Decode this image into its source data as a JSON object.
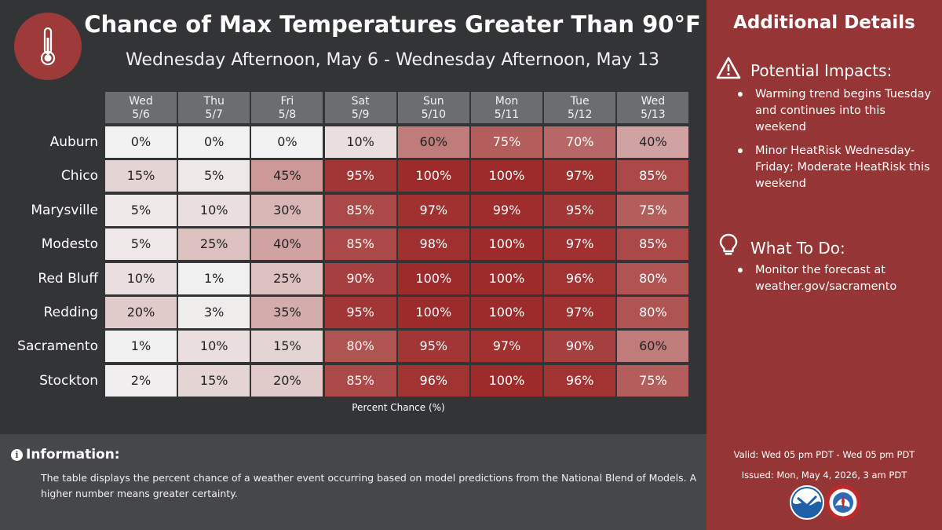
{
  "header": {
    "title": "Chance of Max Temperatures Greater Than 90°F",
    "subtitle": "Wednesday Afternoon, May 6 - Wednesday Afternoon, May 13"
  },
  "chart_data": {
    "type": "table",
    "columns": [
      {
        "day": "Wed",
        "date": "5/6"
      },
      {
        "day": "Thu",
        "date": "5/7"
      },
      {
        "day": "Fri",
        "date": "5/8"
      },
      {
        "day": "Sat",
        "date": "5/9"
      },
      {
        "day": "Sun",
        "date": "5/10"
      },
      {
        "day": "Mon",
        "date": "5/11"
      },
      {
        "day": "Tue",
        "date": "5/12"
      },
      {
        "day": "Wed",
        "date": "5/13"
      }
    ],
    "rows": [
      {
        "location": "Auburn",
        "values": [
          0,
          0,
          0,
          10,
          60,
          75,
          70,
          40
        ]
      },
      {
        "location": "Chico",
        "values": [
          15,
          5,
          45,
          95,
          100,
          100,
          97,
          85
        ]
      },
      {
        "location": "Marysville",
        "values": [
          5,
          10,
          30,
          85,
          97,
          99,
          95,
          75
        ]
      },
      {
        "location": "Modesto",
        "values": [
          5,
          25,
          40,
          85,
          98,
          100,
          97,
          85
        ]
      },
      {
        "location": "Red Bluff",
        "values": [
          10,
          1,
          25,
          90,
          100,
          100,
          96,
          80
        ]
      },
      {
        "location": "Redding",
        "values": [
          20,
          3,
          35,
          95,
          100,
          100,
          97,
          80
        ]
      },
      {
        "location": "Sacramento",
        "values": [
          1,
          10,
          15,
          80,
          95,
          97,
          90,
          60
        ]
      },
      {
        "location": "Stockton",
        "values": [
          2,
          15,
          20,
          85,
          96,
          100,
          96,
          75
        ]
      }
    ],
    "unit": "%",
    "xlabel": "Percent Chance (%)",
    "color_low": "#f2f2f2",
    "color_high": "#9e2b2b"
  },
  "info": {
    "heading": "Information:",
    "icon": "info-icon",
    "text": "The table displays the percent chance of a weather event occurring based on model predictions from the National Blend of Models. A higher number means greater certainty."
  },
  "side": {
    "title": "Additional Details",
    "impacts": {
      "heading": "Potential Impacts:",
      "icon": "warning-icon",
      "bullets": [
        "Warming trend begins Tuesday and continues into this weekend",
        "Minor HeatRisk Wednesday-Friday; Moderate HeatRisk this weekend"
      ]
    },
    "todo": {
      "heading": "What To Do:",
      "icon": "lightbulb-icon",
      "bullets": [
        "Monitor the forecast at weather.gov/sacramento"
      ]
    },
    "valid": "Valid: Wed 05 pm PDT - Wed 05 pm PDT",
    "issued": "Issued: Mon, May 4, 2026, 3 am PDT"
  },
  "colors": {
    "panel_dark": "#333436",
    "panel_info": "#464749",
    "panel_side": "#963535",
    "header_cell": "#6b6d70"
  }
}
